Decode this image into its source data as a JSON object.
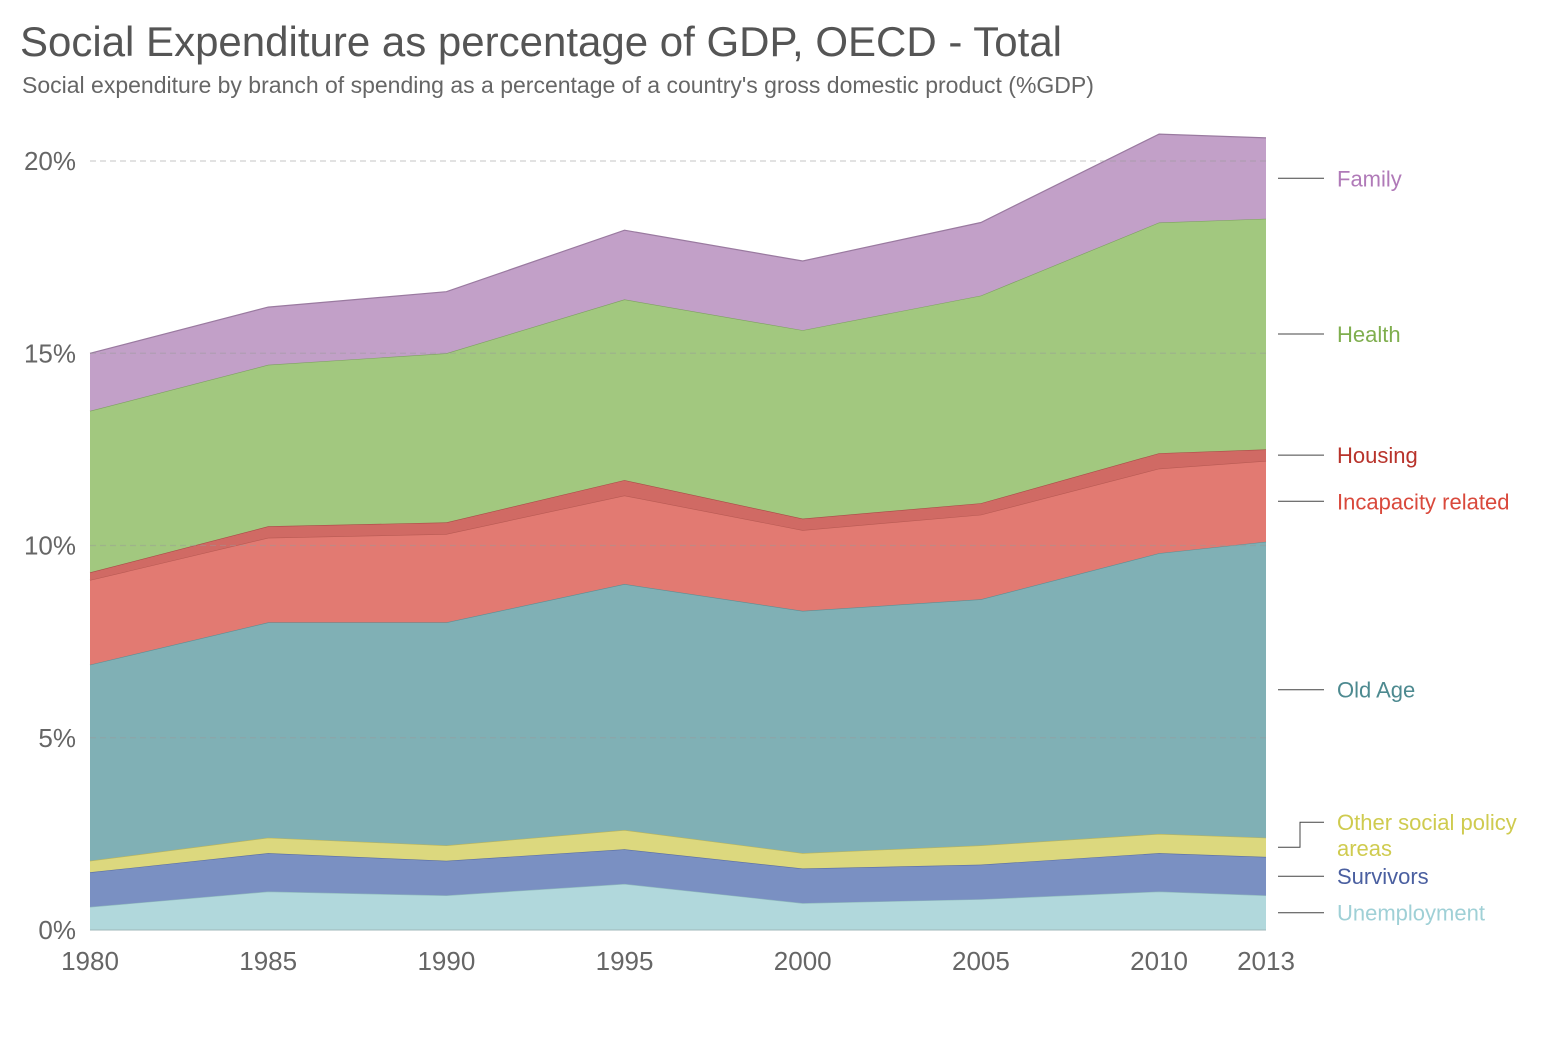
{
  "title": "Social Expenditure as percentage of GDP, OECD - Total",
  "subtitle": "Social expenditure by branch of spending as a percentage of a country's gross domestic product (%GDP)",
  "chart_data": {
    "type": "area",
    "stacked": true,
    "title": "Social Expenditure as percentage of GDP, OECD - Total",
    "subtitle": "Social expenditure by branch of spending as a percentage of a country's gross domestic product (%GDP)",
    "x": [
      1980,
      1985,
      1990,
      1995,
      2000,
      2005,
      2010,
      2013
    ],
    "x_ticks": [
      "1980",
      "1985",
      "1990",
      "1995",
      "2000",
      "2005",
      "2010",
      "2013"
    ],
    "y_ticks": [
      "0%",
      "5%",
      "10%",
      "15%",
      "20%"
    ],
    "y_tick_values": [
      0,
      5,
      10,
      15,
      20
    ],
    "ylim": [
      0,
      20.6
    ],
    "xlabel": "",
    "ylabel": "",
    "series": [
      {
        "name": "Unemployment",
        "legend": "Unemployment",
        "color": "#b1d8dc",
        "line": "#8fb9bd",
        "labelColor": "#9fd0d6",
        "values": [
          0.6,
          1.0,
          0.9,
          1.2,
          0.7,
          0.8,
          1.0,
          0.9
        ]
      },
      {
        "name": "Survivors",
        "legend": "Survivors",
        "color": "#7a90c2",
        "line": "#5a6ea3",
        "labelColor": "#4a5fa0",
        "values": [
          0.9,
          1.0,
          0.9,
          0.9,
          0.9,
          0.9,
          1.0,
          1.0
        ]
      },
      {
        "name": "Other social policy areas",
        "legend": "Other social policy\nareas",
        "color": "#dcd87e",
        "line": "#b8b45c",
        "labelColor": "#cfcb4f",
        "values": [
          0.3,
          0.4,
          0.4,
          0.5,
          0.4,
          0.5,
          0.5,
          0.5
        ]
      },
      {
        "name": "Old Age",
        "legend": "Old Age",
        "color": "#80b0b5",
        "line": "#5e8e93",
        "labelColor": "#4d8a90",
        "values": [
          5.1,
          5.6,
          5.8,
          6.4,
          6.3,
          6.4,
          7.3,
          7.7
        ]
      },
      {
        "name": "Incapacity related",
        "legend": "Incapacity related",
        "color": "#e27a72",
        "line": "#b85a53",
        "labelColor": "#d9493c",
        "values": [
          2.2,
          2.2,
          2.3,
          2.3,
          2.1,
          2.2,
          2.2,
          2.1
        ]
      },
      {
        "name": "Housing",
        "legend": "Housing",
        "color": "#d06a64",
        "line": "#a84c47",
        "labelColor": "#b8332b",
        "values": [
          0.2,
          0.3,
          0.3,
          0.4,
          0.3,
          0.3,
          0.4,
          0.3
        ]
      },
      {
        "name": "Health",
        "legend": "Health",
        "color": "#a2c87f",
        "line": "#7e9f62",
        "labelColor": "#7fae4e",
        "values": [
          4.2,
          4.2,
          4.4,
          4.7,
          4.9,
          5.4,
          6.0,
          6.0
        ]
      },
      {
        "name": "Family",
        "legend": "Family",
        "color": "#c2a0c8",
        "line": "#9a7aa0",
        "labelColor": "#b07ab8",
        "values": [
          1.5,
          1.5,
          1.6,
          1.8,
          1.8,
          1.9,
          2.3,
          2.1
        ]
      }
    ]
  }
}
